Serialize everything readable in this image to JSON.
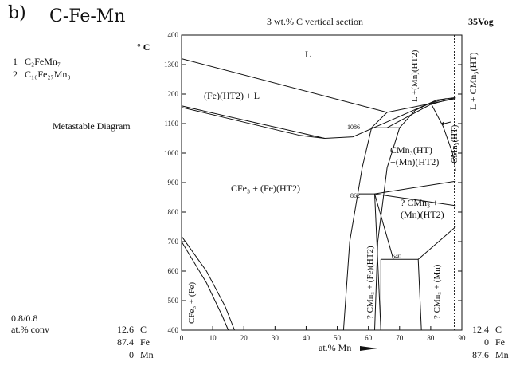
{
  "panel_letter": "b)",
  "system": "C-Fe-Mn",
  "section_title": "3 wt.% C vertical section",
  "database_code": "35Vog",
  "temperature_unit": "° C",
  "compounds": [
    {
      "index": "1",
      "formula": "C₂FeMn₇"
    },
    {
      "index": "2",
      "formula": "C₁₀Fe₂₇Mn₃"
    }
  ],
  "diagram_note": "Metastable Diagram",
  "conversion_note": [
    "0.8/0.8",
    "at.% conv"
  ],
  "left_composition": [
    {
      "value": "12.6",
      "element": "C"
    },
    {
      "value": "87.4",
      "element": "Fe"
    },
    {
      "value": "0",
      "element": "Mn"
    }
  ],
  "right_composition": [
    {
      "value": "12.4",
      "element": "C"
    },
    {
      "value": "0",
      "element": "Fe"
    },
    {
      "value": "87.6",
      "element": "Mn"
    }
  ],
  "x_axis_label": "at.% Mn",
  "x_ticks": [
    "0",
    "10",
    "20",
    "30",
    "40",
    "50",
    "60",
    "70",
    "80",
    "90"
  ],
  "y_ticks": [
    "400",
    "500",
    "600",
    "700",
    "800",
    "900",
    "1000",
    "1100",
    "1200",
    "1300",
    "1400"
  ],
  "invariant_labels": [
    "1086",
    "862",
    "640"
  ],
  "phase_labels": {
    "liquid": "L",
    "fe_ht2_liquid": "(Fe)(HT2) + L",
    "cfe3_fe_ht2": "CFe₃ + (Fe)(HT2)",
    "l_mn_ht2": "L +(Mn)(HT2)",
    "l_cmn3_ht": "L + CMn₃(HT)",
    "cmn3_ht": "CMn₃(HT)",
    "cmn3_ht_mn_ht2": [
      "CMn₃(HT)",
      "+(Mn)(HT2)"
    ],
    "q_cmn3_mn_ht2": [
      "? CMn₃ +",
      "(Mn)(HT2)"
    ],
    "q_cmn3_fe_ht2": "? CMn₃ + (Fe)(HT2)",
    "q_cmn3_mn": "? CMn₃ + (Mn)",
    "cfe3_fe": "CFe₃ + (Fe)"
  },
  "chart_data": {
    "type": "phase-diagram",
    "title": "3 wt.% C vertical section",
    "xlabel": "at.% Mn",
    "ylabel": "° C",
    "xlim": [
      0,
      90
    ],
    "ylim": [
      400,
      1400
    ],
    "invariants": [
      {
        "label": "1086",
        "temperature": 1086
      },
      {
        "label": "862",
        "temperature": 862
      },
      {
        "label": "640",
        "temperature": 640
      }
    ],
    "boundaries": [
      {
        "name": "liquidus-upper",
        "points": [
          [
            0,
            1320
          ],
          [
            66,
            1138
          ],
          [
            88,
            1185
          ]
        ]
      },
      {
        "name": "liquidus-lower",
        "points": [
          [
            0,
            1160
          ],
          [
            25,
            1100
          ],
          [
            46,
            1050
          ],
          [
            55,
            1055
          ],
          [
            68,
            1115
          ],
          [
            82,
            1180
          ],
          [
            88,
            1188
          ]
        ]
      },
      {
        "name": "solidus-fe",
        "points": [
          [
            0,
            1155
          ],
          [
            20,
            1105
          ],
          [
            38,
            1060
          ],
          [
            46,
            1050
          ]
        ]
      },
      {
        "name": "l-mn-ht2-lower",
        "points": [
          [
            66,
            1086
          ],
          [
            72,
            1120
          ],
          [
            80,
            1165
          ],
          [
            88,
            1188
          ]
        ]
      },
      {
        "name": "l-mn-ht2-left",
        "points": [
          [
            61,
            1086
          ],
          [
            66,
            1138
          ]
        ]
      },
      {
        "name": "invariant-1086",
        "points": [
          [
            61,
            1086
          ],
          [
            70,
            1086
          ]
        ]
      },
      {
        "name": "fe-ht2-solvus-a",
        "points": [
          [
            52,
            400
          ],
          [
            54,
            700
          ],
          [
            58,
            950
          ],
          [
            61,
            1086
          ]
        ]
      },
      {
        "name": "fe-ht2-solvus-b",
        "points": [
          [
            62,
            400
          ],
          [
            63,
            700
          ],
          [
            66,
            950
          ],
          [
            70,
            1086
          ]
        ]
      },
      {
        "name": "mn-ht2-boundary",
        "points": [
          [
            70,
            1086
          ],
          [
            75,
            1145
          ],
          [
            80,
            1170
          ],
          [
            85,
            1185
          ]
        ]
      },
      {
        "name": "cmn3-ht-boundary",
        "points": [
          [
            80,
            1170
          ],
          [
            84,
            1090
          ],
          [
            87,
            1000
          ],
          [
            88,
            940
          ]
        ]
      },
      {
        "name": "invariant-862",
        "points": [
          [
            57,
            862
          ],
          [
            62,
            862
          ]
        ]
      },
      {
        "name": "862-fan-upper",
        "points": [
          [
            62,
            862
          ],
          [
            88,
            905
          ]
        ]
      },
      {
        "name": "862-fan-lower",
        "points": [
          [
            62,
            862
          ],
          [
            88,
            822
          ]
        ]
      },
      {
        "name": "862-down-a",
        "points": [
          [
            62,
            862
          ],
          [
            68,
            640
          ]
        ]
      },
      {
        "name": "862-down-b",
        "points": [
          [
            62,
            862
          ],
          [
            64,
            400
          ]
        ]
      },
      {
        "name": "invariant-640",
        "points": [
          [
            64,
            640
          ],
          [
            76,
            640
          ]
        ]
      },
      {
        "name": "640-up",
        "points": [
          [
            76,
            640
          ],
          [
            88,
            750
          ]
        ]
      },
      {
        "name": "640-down-a",
        "points": [
          [
            64,
            640
          ],
          [
            64,
            400
          ]
        ]
      },
      {
        "name": "640-down-b",
        "points": [
          [
            76,
            640
          ],
          [
            77,
            400
          ]
        ]
      },
      {
        "name": "cfe3-fe-a",
        "points": [
          [
            0,
            718
          ],
          [
            8,
            600
          ],
          [
            14,
            480
          ],
          [
            17,
            400
          ]
        ]
      },
      {
        "name": "cfe3-fe-b",
        "points": [
          [
            0,
            700
          ],
          [
            8,
            560
          ],
          [
            13,
            450
          ],
          [
            15,
            400
          ]
        ]
      },
      {
        "name": "right-limit-dotted",
        "points": [
          [
            87.6,
            400
          ],
          [
            87.6,
            1400
          ]
        ]
      }
    ]
  }
}
